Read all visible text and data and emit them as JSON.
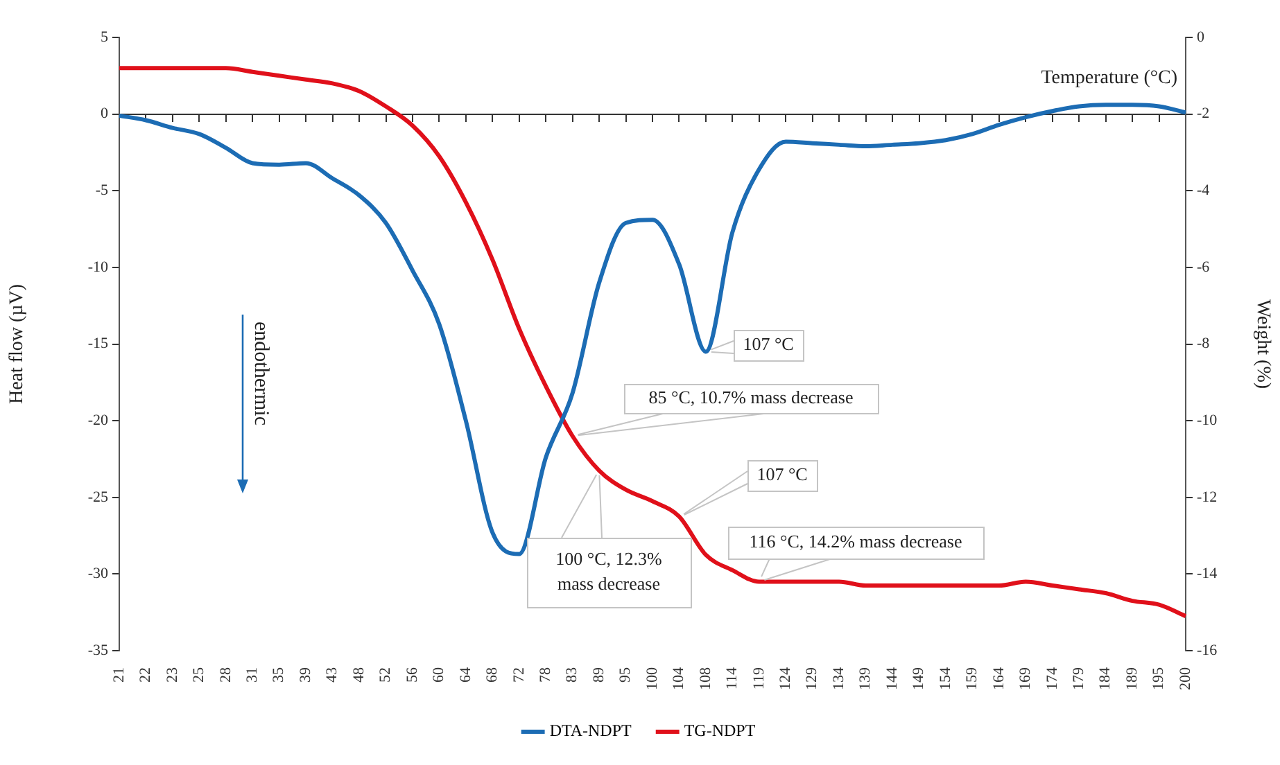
{
  "chart_data": {
    "type": "line",
    "xlabel": "Temperature (°C)",
    "ylabel": "Heat flow (µV)",
    "y2label": "Weight (%)",
    "categories": [
      "21",
      "22",
      "23",
      "25",
      "28",
      "31",
      "35",
      "39",
      "43",
      "48",
      "52",
      "56",
      "60",
      "64",
      "68",
      "72",
      "78",
      "83",
      "89",
      "95",
      "100",
      "104",
      "108",
      "114",
      "119",
      "124",
      "129",
      "134",
      "139",
      "144",
      "149",
      "154",
      "159",
      "164",
      "169",
      "174",
      "179",
      "184",
      "189",
      "195",
      "200"
    ],
    "series": [
      {
        "name": "DTA-NDPT",
        "color": "#1c6cb4",
        "values": [
          -0.1,
          -0.4,
          -0.9,
          -1.3,
          -2.2,
          -3.2,
          -3.3,
          -3.2,
          -4.2,
          -5.3,
          -7.1,
          -10.2,
          -13.7,
          -20.0,
          -27.3,
          -28.7,
          -22.4,
          -18.2,
          -11.0,
          -7.1,
          -6.9,
          -9.8,
          -15.5,
          -7.7,
          -3.6,
          -1.8,
          -1.9,
          -2.0,
          -2.1,
          -2.0,
          -1.9,
          -1.7,
          -1.3,
          -0.7,
          -0.2,
          0.2,
          0.5,
          0.6,
          0.6,
          0.5,
          0.1
        ]
      },
      {
        "name": "TG-NDPT",
        "color": "#e0101a",
        "axis": "y2",
        "values": [
          -0.8,
          -0.8,
          -0.8,
          -0.8,
          -0.8,
          -0.9,
          -1.0,
          -1.1,
          -1.2,
          -1.4,
          -1.8,
          -2.3,
          -3.1,
          -4.3,
          -5.8,
          -7.6,
          -9.1,
          -10.4,
          -11.3,
          -11.8,
          -12.1,
          -12.5,
          -13.5,
          -13.9,
          -14.2,
          -14.2,
          -14.2,
          -14.2,
          -14.3,
          -14.3,
          -14.3,
          -14.3,
          -14.3,
          -14.3,
          -14.2,
          -14.3,
          -14.4,
          -14.5,
          -14.7,
          -14.8,
          -15.1
        ]
      }
    ],
    "ylim": [
      -35,
      5
    ],
    "yticks": [
      -35,
      -30,
      -25,
      -20,
      -15,
      -10,
      -5,
      0,
      5
    ],
    "y2lim": [
      -16,
      0
    ],
    "y2ticks": [
      -16,
      -14,
      -12,
      -10,
      -8,
      -6,
      -4,
      -2,
      0
    ],
    "annotations": [
      "endothermic",
      {
        "text": "107 °C",
        "x": "108",
        "y": -15.5
      },
      {
        "text": "85 °C, 10.7% mass decrease",
        "x": "83",
        "y": -21.0
      },
      {
        "text": "107 °C",
        "x": "104",
        "y": -26.3
      },
      {
        "text": "100 °C, 12.3%\nmass decrease",
        "x": "89",
        "y": -23.2
      },
      {
        "text": "116 °C, 14.2% mass decrease",
        "x": "119",
        "y": -30.5
      }
    ],
    "legend": "bottom",
    "marker": "none",
    "line_style": "solid"
  }
}
